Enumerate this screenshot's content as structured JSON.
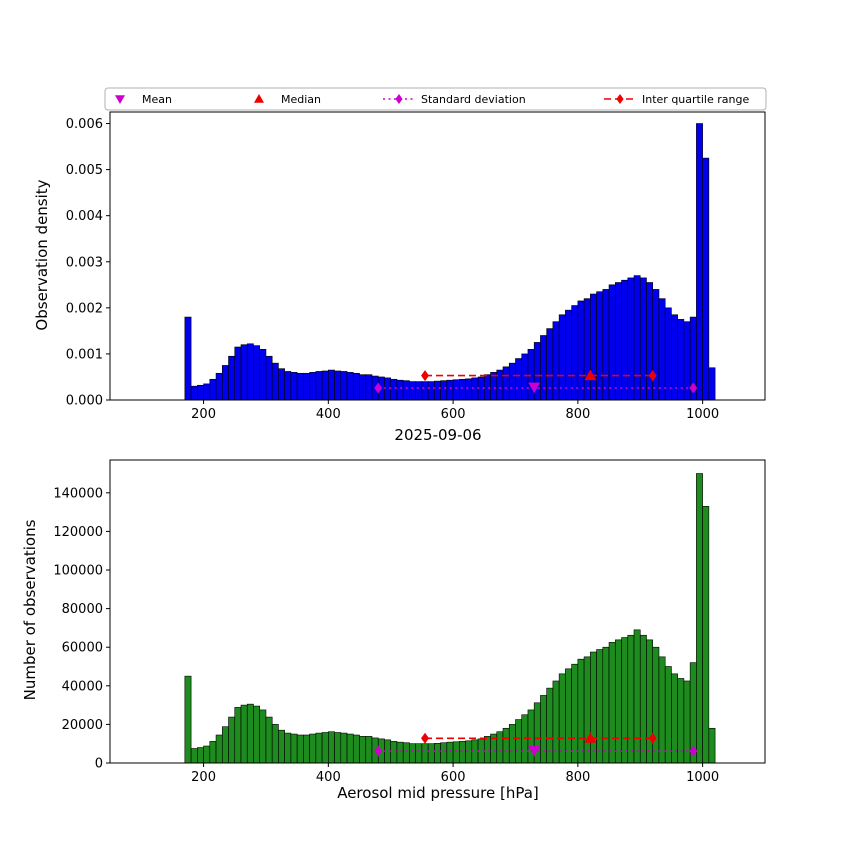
{
  "figure": {
    "title": "2025-09-06",
    "xlabel": "Aerosol mid pressure [hPa]",
    "background": "#ffffff",
    "legend": [
      {
        "label": "Mean",
        "marker": "triangle-down",
        "color": "#cc00cc",
        "line": "none"
      },
      {
        "label": "Median",
        "marker": "triangle-up",
        "color": "#ee0000",
        "line": "none"
      },
      {
        "label": "Standard deviation",
        "marker": "diamond",
        "color": "#cc00cc",
        "line": "dotted"
      },
      {
        "label": "Inter quartile range",
        "marker": "diamond",
        "color": "#ee0000",
        "line": "dashed"
      }
    ]
  },
  "chart_data": [
    {
      "type": "bar",
      "subtype": "histogram",
      "ylabel": "Observation density",
      "bar_color": "#0000ee",
      "edge_color": "#000000",
      "bin_start": 170,
      "bin_width": 10,
      "xlim": [
        50,
        1100
      ],
      "ylim": [
        0,
        0.00625
      ],
      "xticks": [
        200,
        400,
        600,
        800,
        1000
      ],
      "yticks": [
        0,
        0.001,
        0.002,
        0.003,
        0.004,
        0.005,
        0.006
      ],
      "ytick_decimals": 3,
      "values": [
        0.0018,
        0.0003,
        0.00032,
        0.00035,
        0.00045,
        0.00058,
        0.00075,
        0.00095,
        0.00115,
        0.0012,
        0.00122,
        0.00118,
        0.0011,
        0.00095,
        0.0008,
        0.00068,
        0.00062,
        0.0006,
        0.00058,
        0.00058,
        0.0006,
        0.00062,
        0.00063,
        0.00065,
        0.00063,
        0.00062,
        0.0006,
        0.00058,
        0.00055,
        0.00055,
        0.00052,
        0.0005,
        0.00048,
        0.00045,
        0.00043,
        0.00042,
        0.0004,
        0.0004,
        0.0004,
        0.0004,
        0.00041,
        0.00042,
        0.00043,
        0.00044,
        0.00045,
        0.00046,
        0.00048,
        0.0005,
        0.00055,
        0.0006,
        0.00065,
        0.00072,
        0.0008,
        0.0009,
        0.001,
        0.0011,
        0.00125,
        0.0014,
        0.00155,
        0.0017,
        0.00185,
        0.00195,
        0.00205,
        0.00215,
        0.0022,
        0.0023,
        0.00235,
        0.0024,
        0.0025,
        0.00255,
        0.0026,
        0.00265,
        0.0027,
        0.00265,
        0.00255,
        0.0024,
        0.0022,
        0.002,
        0.00185,
        0.00175,
        0.0017,
        0.0018,
        0.006,
        0.00525,
        0.0007
      ],
      "markers": {
        "mean": {
          "x": 730,
          "y": 0.00028,
          "color": "#cc00cc",
          "marker": "triangle-down"
        },
        "median": {
          "x": 820,
          "y": 0.00053,
          "color": "#ee0000",
          "marker": "triangle-up"
        },
        "std_range": {
          "x1": 480,
          "x2": 985,
          "y": 0.00026,
          "color": "#cc00cc",
          "line": "dotted"
        },
        "iqr_range": {
          "x1": 555,
          "x2": 920,
          "y": 0.00053,
          "color": "#ee0000",
          "line": "dashed"
        }
      }
    },
    {
      "type": "bar",
      "subtype": "histogram",
      "ylabel": "Number of observations",
      "bar_color": "#1e8b1e",
      "edge_color": "#000000",
      "bin_start": 170,
      "bin_width": 10,
      "xlim": [
        50,
        1100
      ],
      "ylim": [
        0,
        157000
      ],
      "xticks": [
        200,
        400,
        600,
        800,
        1000
      ],
      "yticks": [
        0,
        20000,
        40000,
        60000,
        80000,
        100000,
        120000,
        140000
      ],
      "ytick_decimals": 0,
      "values": [
        45000,
        7500,
        8000,
        8800,
        11200,
        14500,
        18800,
        23800,
        28800,
        30000,
        30500,
        29500,
        27500,
        23800,
        20000,
        17000,
        15500,
        15000,
        14500,
        14500,
        15000,
        15500,
        15800,
        16200,
        15800,
        15500,
        15000,
        14500,
        13800,
        13800,
        13000,
        12500,
        12000,
        11200,
        10800,
        10500,
        10000,
        10000,
        10000,
        10000,
        10200,
        10500,
        10800,
        11000,
        11200,
        11500,
        12000,
        12500,
        13800,
        15000,
        16200,
        18000,
        20000,
        22500,
        25000,
        27500,
        31200,
        35000,
        38800,
        42500,
        46200,
        48800,
        51200,
        53800,
        55000,
        57500,
        58800,
        60000,
        62500,
        63800,
        65000,
        66200,
        69000,
        66200,
        63800,
        60000,
        55000,
        50000,
        46200,
        43800,
        42500,
        52000,
        150000,
        133000,
        18000
      ],
      "markers": {
        "mean": {
          "x": 730,
          "y": 6500,
          "color": "#cc00cc",
          "marker": "triangle-down"
        },
        "median": {
          "x": 820,
          "y": 12800,
          "color": "#ee0000",
          "marker": "triangle-up"
        },
        "std_range": {
          "x1": 480,
          "x2": 985,
          "y": 6200,
          "color": "#cc00cc",
          "line": "dotted"
        },
        "iqr_range": {
          "x1": 555,
          "x2": 920,
          "y": 12800,
          "color": "#ee0000",
          "line": "dashed"
        }
      }
    }
  ]
}
